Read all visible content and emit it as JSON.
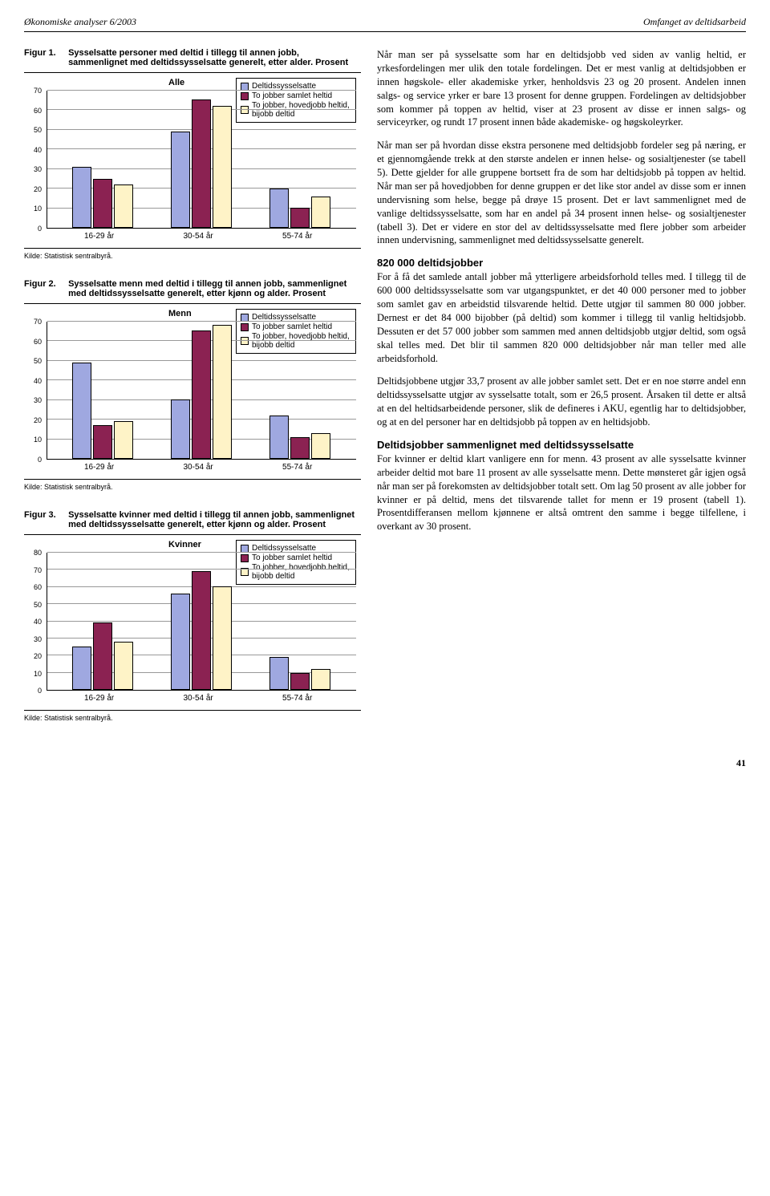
{
  "header": {
    "left": "Økonomiske analyser 6/2003",
    "right": "Omfanget av deltidsarbeid"
  },
  "page_number": "41",
  "colors": {
    "series1": "#9fa8e0",
    "series2": "#8b2252",
    "series3": "#fef3c7",
    "grid": "#999999",
    "text": "#000000",
    "bg": "#ffffff"
  },
  "legend_labels": {
    "s1": "Deltidssysselsatte",
    "s2": "To jobber samlet heltid",
    "s3": "To jobber, hovedjobb heltid, bijobb deltid"
  },
  "source_text": "Kilde: Statistisk sentralbyrå.",
  "fig1": {
    "num": "Figur 1.",
    "title": "Sysselsatte personer med deltid i tillegg til annen jobb, sammenlignet med deltidssysselsatte generelt, etter alder. Prosent",
    "subtitle": "Alle",
    "ymax": 70,
    "ytick_step": 10,
    "categories": [
      "16-29 år",
      "30-54 år",
      "55-74 år"
    ],
    "values": [
      [
        31,
        25,
        22
      ],
      [
        49,
        65,
        62
      ],
      [
        20,
        10,
        16
      ]
    ]
  },
  "fig2": {
    "num": "Figur 2.",
    "title": "Sysselsatte menn med deltid i tillegg til annen jobb, sammenlignet med deltidssysselsatte generelt, etter kjønn og alder. Prosent",
    "subtitle": "Menn",
    "ymax": 70,
    "ytick_step": 10,
    "categories": [
      "16-29 år",
      "30-54 år",
      "55-74 år"
    ],
    "values": [
      [
        49,
        17,
        19
      ],
      [
        30,
        65,
        68
      ],
      [
        22,
        11,
        13
      ]
    ]
  },
  "fig3": {
    "num": "Figur 3.",
    "title": "Sysselsatte kvinner med deltid i tillegg til annen jobb, sammenlignet med deltidssysselsatte generelt, etter kjønn og alder. Prosent",
    "subtitle": "Kvinner",
    "ymax": 80,
    "ytick_step": 10,
    "categories": [
      "16-29 år",
      "30-54 år",
      "55-74 år"
    ],
    "values": [
      [
        25,
        39,
        28
      ],
      [
        56,
        69,
        60
      ],
      [
        19,
        10,
        12
      ]
    ]
  },
  "body": {
    "p1": "Når man ser på sysselsatte som har en deltidsjobb ved siden av vanlig heltid, er yrkesfordelingen mer ulik den totale fordelingen. Det er mest vanlig at deltidsjobben er innen høgskole- eller akademiske yrker, henholdsvis 23 og 20 prosent. Andelen innen salgs- og service yrker er bare 13 prosent for denne gruppen. Fordelingen av deltidsjobber som kommer på toppen av heltid, viser at 23 prosent av disse er innen salgs- og serviceyrker, og rundt 17 prosent innen både akademiske- og høgskoleyrker.",
    "p2": "Når man ser på hvordan disse ekstra personene med deltidsjobb fordeler seg på næring, er et gjennomgående trekk at den største andelen er innen helse- og sosialtjenester (se tabell 5). Dette gjelder for alle gruppene bortsett fra de som har deltidsjobb på toppen av heltid. Når man ser på hovedjobben for denne gruppen er det like stor andel av disse som er innen undervisning som helse, begge på drøye 15 prosent. Det er lavt sammenlignet med de vanlige deltidssysselsatte, som har en andel på 34 prosent innen helse- og sosialtjenester (tabell 3). Det er videre en stor del av deltidssysselsatte med flere jobber som arbeider innen undervisning, sammenlignet med deltidssysselsatte generelt.",
    "h1": "820 000 deltidsjobber",
    "p3": "For å få det samlede antall jobber må ytterligere arbeidsforhold telles med. I tillegg til de 600 000 deltidssysselsatte som var utgangspunktet, er det 40 000 personer med to jobber som samlet gav en arbeidstid tilsvarende heltid. Dette utgjør til sammen 80 000 jobber. Dernest er det 84 000 bijobber (på deltid) som kommer i tillegg til vanlig heltidsjobb. Dessuten er det 57 000 jobber som sammen med annen deltidsjobb utgjør deltid, som også skal telles med. Det blir til sammen 820 000 deltidsjobber når man teller med alle arbeidsforhold.",
    "p4": "Deltidsjobbene utgjør 33,7 prosent av alle jobber samlet sett. Det er en noe større andel enn deltidssysselsatte utgjør av sysselsatte totalt, som er 26,5 prosent. Årsaken til dette er altså at en del heltidsarbeidende personer, slik de defineres i AKU, egentlig har to deltidsjobber, og at en del personer har en deltidsjobb på toppen av en heltidsjobb.",
    "h2": "Deltidsjobber sammenlignet med deltidssysselsatte",
    "p5": "For kvinner er deltid klart vanligere enn for menn. 43 prosent av alle sysselsatte kvinner arbeider deltid mot bare 11 prosent av alle sysselsatte menn. Dette mønsteret går igjen også når man ser på forekomsten av deltidsjobber totalt sett. Om lag 50 prosent av alle jobber for kvinner er på deltid, mens det tilsvarende tallet for menn er 19 prosent (tabell 1). Prosentdifferansen mellom kjønnene er altså omtrent den samme i begge tilfellene, i overkant av 30 prosent."
  }
}
